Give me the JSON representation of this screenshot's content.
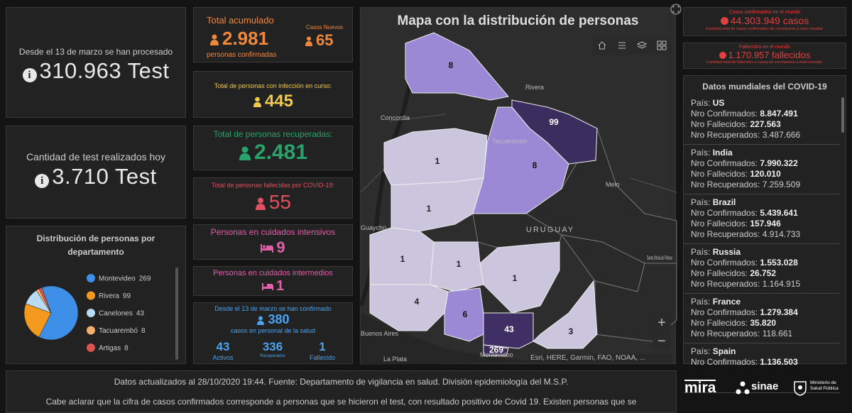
{
  "tests_total": {
    "caption": "Desde el 13 de marzo se han procesado",
    "value": "310.963 Test"
  },
  "tests_today": {
    "caption": "Cantidad de test realizados hoy",
    "value": "3.710 Test"
  },
  "department_chart": {
    "type": "pie",
    "title": "Distribución de personas por departamento",
    "categories": [
      "Montevideo",
      "Rivera",
      "Canelones",
      "Tacuarembó",
      "Artigas"
    ],
    "values": [
      269,
      99,
      43,
      8,
      8
    ],
    "colors": [
      "#3d8fe8",
      "#f39a1e",
      "#b8dbf3",
      "#f3b06a",
      "#d9534f"
    ]
  },
  "accumulated": {
    "title": "Total acumulado",
    "value": "2.981",
    "caption": "personas confirmadas",
    "new_title": "Casos Nuevos",
    "new_value": "65"
  },
  "active": {
    "title": "Total de personas con infección en curso:",
    "value": "445"
  },
  "recovered": {
    "title": "Total de personas recuperadas:",
    "value": "2.481"
  },
  "deceased": {
    "title": "Total de personas fallecidas por COVID-19:",
    "value": "55"
  },
  "intensive_care": {
    "title": "Personas en cuidados intensivos",
    "value": "9"
  },
  "intermediate_care": {
    "title": "Personas en cuidados intermedios",
    "value": "1"
  },
  "health_staff": {
    "title": "Desde el 13 de marzo se han confirmado",
    "value": "380",
    "caption": "casos en personal de la salud",
    "items": [
      {
        "value": "43",
        "label": "Activos"
      },
      {
        "value": "336",
        "label": "Recuperados"
      },
      {
        "value": "1",
        "label": "Fallecido"
      }
    ]
  },
  "map": {
    "title": "Mapa con la distribución de personas",
    "regions": [
      {
        "value": "8"
      },
      {
        "value": "99"
      },
      {
        "value": "8"
      },
      {
        "value": "1"
      },
      {
        "value": "1"
      },
      {
        "value": "1"
      },
      {
        "value": "1"
      },
      {
        "value": "1"
      },
      {
        "value": "4"
      },
      {
        "value": "6"
      },
      {
        "value": "43"
      },
      {
        "value": "269"
      },
      {
        "value": "3"
      }
    ],
    "places": [
      "Rivera",
      "Concordia",
      "Tacuarembó",
      "Melo",
      "URUGUAY",
      "Guaychú",
      "Santa Vitória do Palmar",
      "Buenos Aires",
      "La Plata",
      "Montevideo"
    ],
    "attribution": "Esri, HERE, Garmin, FAO, NOAA, ..."
  },
  "world_confirmed": {
    "title": "Casos confirmados en el mundo",
    "value": "44.303.949 casos",
    "caption": "Cantidad total de casos confirmados de coronavirus a nivel mundial."
  },
  "world_deaths": {
    "title": "Fallecidos en el mundo",
    "value": "1.170.957 fallecidos",
    "caption": "Cantidad total de fallecidos a causa de coronavirus a nivel mundial."
  },
  "countries": {
    "title": "Datos mundiales del COVID-19",
    "labels": {
      "country": "País:",
      "confirmed": "Nro Confirmados:",
      "deaths": "Nro Fallecidos:",
      "recovered": "Nro Recuperados:"
    },
    "items": [
      {
        "country": "US",
        "confirmed": "8.847.491",
        "deaths": "227.563",
        "recovered": "3.487.666"
      },
      {
        "country": "India",
        "confirmed": "7.990.322",
        "deaths": "120.010",
        "recovered": "7.259.509"
      },
      {
        "country": "Brazil",
        "confirmed": "5.439.641",
        "deaths": "157.946",
        "recovered": "4.914.733"
      },
      {
        "country": "Russia",
        "confirmed": "1.553.028",
        "deaths": "26.752",
        "recovered": "1.164.915"
      },
      {
        "country": "France",
        "confirmed": "1.279.384",
        "deaths": "35.820",
        "recovered": "118.661"
      },
      {
        "country": "Spain",
        "confirmed": "1.136.503"
      }
    ]
  },
  "footer": {
    "lines": [
      "Datos actualizados al 28/10/2020 19:44. Fuente: Departamento de vigilancia en salud. División epidemiología del M.S.P.",
      "Cabe aclarar que la cifra de casos confirmados corresponde a personas que se hicieron el test, con resultado positivo de Covid 19. Existen personas que se"
    ],
    "logos": [
      "mira",
      "sinae",
      "Ministerio de Salud Pública"
    ]
  }
}
